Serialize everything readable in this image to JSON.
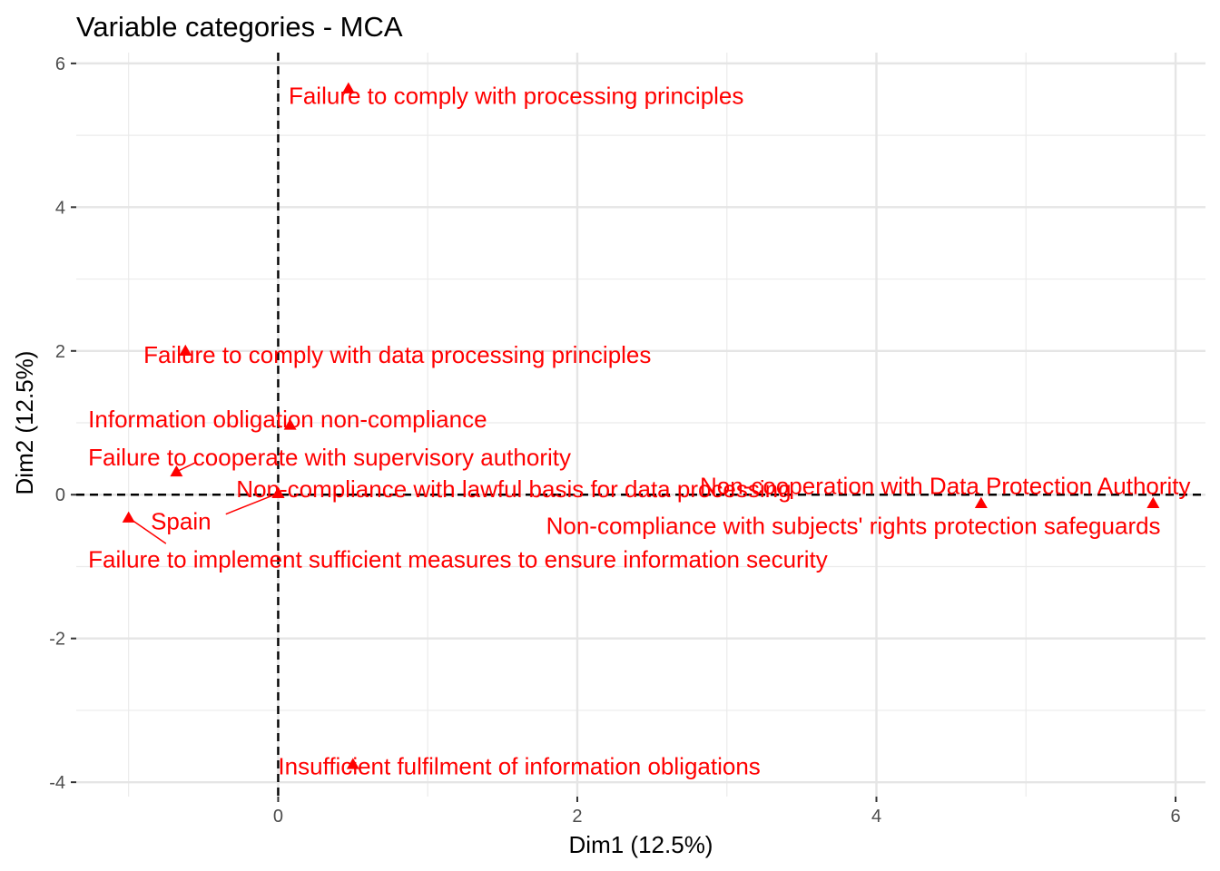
{
  "chart_data": {
    "type": "scatter",
    "title": "Variable categories - MCA",
    "xlabel": "Dim1 (12.5%)",
    "ylabel": "Dim2 (12.5%)",
    "xlim": [
      -1.35,
      6.2
    ],
    "ylim": [
      -4.2,
      6.15
    ],
    "x_ticks": [
      0,
      2,
      4,
      6
    ],
    "y_ticks": [
      -4,
      -2,
      0,
      2,
      4,
      6
    ],
    "grid": true,
    "reference_lines": {
      "x": 0,
      "y": 0,
      "style": "dashed"
    },
    "marker": "triangle",
    "point_color": "#ff0000",
    "points": [
      {
        "label": "Failure to comply with processing principles",
        "x": 0.47,
        "y": 5.65
      },
      {
        "label": "Failure to comply with data processing principles",
        "x": -0.62,
        "y": 2.0
      },
      {
        "label": "Information obligation non-compliance",
        "x": 0.08,
        "y": 0.97
      },
      {
        "label": "Failure to cooperate with supervisory authority",
        "x": -0.68,
        "y": 0.32
      },
      {
        "label": "Non-compliance with lawful basis for data processing",
        "x": 0.0,
        "y": 0.02
      },
      {
        "label": "Non-cooperation with Data Protection Authority",
        "x": 5.85,
        "y": -0.12
      },
      {
        "label": "Non-compliance with subjects' rights protection safeguards",
        "x": 4.7,
        "y": -0.12
      },
      {
        "label": "Spain",
        "x": 0.0,
        "y": 0.02
      },
      {
        "label": "Failure to implement sufficient measures to ensure information security",
        "x": -1.0,
        "y": -0.32
      },
      {
        "label": "Insufficient fulfilment of information obligations",
        "x": 0.5,
        "y": -3.75
      }
    ]
  }
}
